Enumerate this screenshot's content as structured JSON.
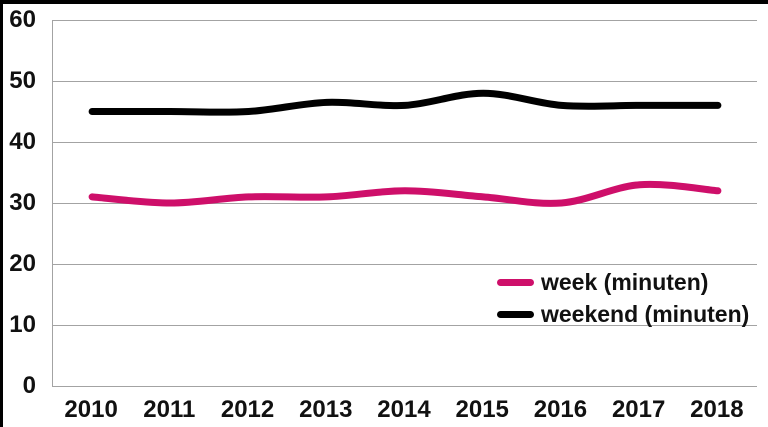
{
  "chart_data": {
    "type": "line",
    "title": "",
    "xlabel": "",
    "ylabel": "",
    "categories": [
      "2010",
      "2011",
      "2012",
      "2013",
      "2014",
      "2015",
      "2016",
      "2017",
      "2018"
    ],
    "series": [
      {
        "name": "week (minuten)",
        "color": "#ce0f6a",
        "values": [
          31,
          30,
          31,
          31,
          32,
          31,
          30,
          33,
          32
        ]
      },
      {
        "name": "weekend (minuten)",
        "color": "#000000",
        "values": [
          45,
          45,
          45,
          46.5,
          46,
          48,
          46,
          46,
          46
        ]
      }
    ],
    "ylim": [
      0,
      60
    ],
    "yticks": [
      60,
      50,
      40,
      30,
      20,
      10,
      0
    ],
    "grid": true,
    "smooth": true,
    "line_width": 7,
    "legend_position": "inside-right"
  },
  "colors": {
    "gridline": "#a3a3a3",
    "frame_edge": "#000000",
    "text": "#111111",
    "background": "#ffffff"
  }
}
